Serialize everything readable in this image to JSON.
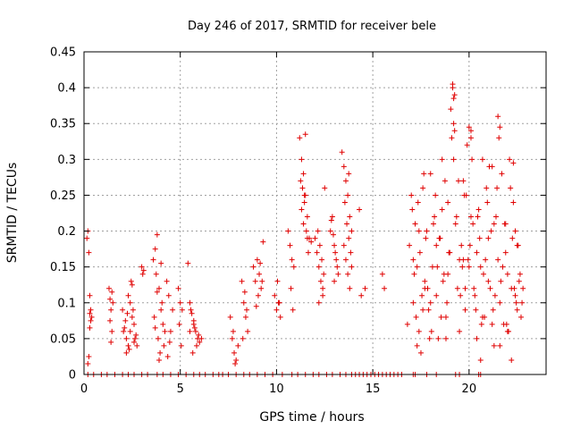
{
  "chart_data": {
    "type": "scatter",
    "title": "Day 246 of 2017, SRMTID for receiver bele",
    "xlabel": "GPS time / hours",
    "ylabel": "SRMTID / TECUs",
    "xlim": [
      0,
      24
    ],
    "ylim": [
      0,
      0.45
    ],
    "xticks": [
      0,
      5,
      10,
      15,
      20
    ],
    "xtick_labels": [
      "0",
      "5",
      "10",
      "15",
      "20"
    ],
    "yticks": [
      0,
      0.05,
      0.1,
      0.15,
      0.2,
      0.25,
      0.3,
      0.35,
      0.4,
      0.45
    ],
    "ytick_labels": [
      "0",
      "0.05",
      "0.1",
      "0.15",
      "0.2",
      "0.25",
      "0.3",
      "0.35",
      "0.4",
      "0.45"
    ],
    "grid": true,
    "marker": "+",
    "color": "#e00000",
    "series": [
      {
        "name": "SRMTID",
        "x": [
          0.15,
          0.2,
          0.25,
          0.3,
          0.35,
          0.3,
          0.25,
          0.2,
          0.3,
          0.35,
          0.4,
          1.3,
          1.35,
          1.4,
          1.45,
          1.5,
          1.4,
          1.35,
          1.45,
          2.0,
          2.1,
          2.2,
          2.3,
          2.4,
          2.5,
          2.6,
          2.7,
          2.4,
          2.3,
          2.5,
          2.2,
          2.6,
          2.15,
          2.35,
          2.55,
          2.45,
          2.25,
          2.65,
          2.05,
          2.75,
          3.0,
          3.05,
          3.1,
          3.6,
          3.7,
          3.8,
          3.9,
          4.0,
          4.1,
          4.2,
          3.75,
          3.85,
          3.95,
          4.05,
          3.65,
          3.8,
          4.15,
          3.9,
          3.7,
          4.0,
          4.3,
          4.4,
          4.5,
          4.6,
          4.35,
          4.45,
          4.9,
          5.0,
          5.1,
          5.05,
          4.95,
          5.4,
          5.5,
          5.6,
          5.7,
          5.8,
          5.9,
          6.0,
          6.1,
          5.55,
          5.65,
          5.75,
          5.85,
          5.95,
          5.5,
          5.7,
          7.6,
          7.7,
          7.8,
          7.9,
          8.0,
          7.75,
          7.85,
          8.2,
          8.3,
          8.4,
          8.5,
          8.35,
          8.45,
          8.25,
          8.8,
          8.9,
          9.0,
          9.1,
          9.2,
          9.3,
          9.05,
          9.15,
          8.95,
          9.25,
          9.9,
          10.0,
          10.1,
          10.2,
          10.05,
          10.15,
          10.6,
          10.7,
          10.8,
          10.9,
          10.75,
          10.85,
          11.2,
          11.3,
          11.4,
          11.5,
          11.6,
          11.7,
          11.8,
          11.35,
          11.45,
          11.55,
          11.65,
          11.25,
          11.5,
          11.4,
          11.6,
          11.3,
          11.45,
          12.0,
          12.1,
          12.2,
          12.3,
          12.4,
          12.5,
          12.15,
          12.25,
          12.35,
          12.45,
          12.2,
          12.4,
          12.8,
          12.9,
          13.0,
          13.1,
          13.2,
          12.95,
          13.05,
          13.15,
          12.85,
          13.0,
          13.4,
          13.5,
          13.6,
          13.7,
          13.8,
          13.9,
          13.55,
          13.65,
          13.75,
          13.85,
          13.6,
          13.7,
          13.8,
          13.5,
          13.9,
          13.75,
          14.3,
          14.4,
          14.6,
          15.5,
          15.6,
          16.8,
          16.9,
          17.0,
          17.1,
          17.2,
          17.3,
          17.4,
          17.5,
          17.6,
          17.7,
          17.8,
          17.9,
          18.0,
          18.1,
          18.2,
          18.3,
          18.4,
          18.5,
          18.6,
          18.7,
          18.8,
          18.9,
          19.0,
          19.1,
          19.2,
          19.3,
          19.4,
          19.5,
          19.6,
          19.7,
          19.8,
          19.9,
          20.0,
          20.1,
          20.2,
          20.3,
          20.4,
          20.5,
          20.6,
          20.7,
          20.8,
          20.9,
          21.0,
          21.1,
          21.2,
          21.3,
          21.4,
          21.5,
          21.6,
          21.7,
          21.8,
          21.9,
          22.0,
          22.1,
          22.2,
          22.3,
          22.4,
          22.5,
          22.6,
          22.7,
          22.8,
          17.05,
          17.25,
          17.45,
          17.65,
          17.85,
          18.05,
          18.25,
          18.45,
          18.65,
          18.85,
          19.05,
          19.15,
          19.25,
          19.45,
          19.65,
          19.85,
          20.05,
          20.25,
          20.45,
          20.65,
          20.85,
          21.05,
          21.25,
          21.45,
          21.65,
          21.85,
          22.05,
          22.25,
          22.45,
          22.65,
          17.15,
          17.35,
          17.55,
          17.75,
          17.95,
          18.15,
          18.35,
          18.55,
          18.75,
          18.95,
          19.35,
          19.55,
          19.75,
          19.95,
          20.15,
          20.35,
          20.55,
          20.75,
          20.95,
          21.15,
          21.35,
          21.55,
          21.75,
          21.95,
          22.15,
          22.35,
          22.55,
          22.75,
          17.1,
          17.4,
          17.7,
          18.0,
          18.3,
          18.6,
          18.9,
          19.2,
          19.5,
          19.8,
          20.1,
          20.4,
          20.7,
          21.0,
          21.3,
          21.6,
          21.9,
          22.2,
          22.5,
          19.15,
          19.2,
          19.25,
          20.0,
          20.1,
          21.5,
          21.6,
          22.3,
          22.4,
          17.3,
          17.6,
          18.8,
          19.7,
          20.6,
          21.2,
          22.0
        ],
        "y": [
          0.19,
          0.2,
          0.17,
          0.085,
          0.075,
          0.11,
          0.025,
          0.015,
          0.065,
          0.09,
          0.08,
          0.12,
          0.105,
          0.09,
          0.06,
          0.1,
          0.045,
          0.075,
          0.115,
          0.09,
          0.065,
          0.05,
          0.04,
          0.06,
          0.08,
          0.07,
          0.055,
          0.1,
          0.11,
          0.125,
          0.03,
          0.045,
          0.075,
          0.035,
          0.09,
          0.13,
          0.085,
          0.05,
          0.06,
          0.04,
          0.15,
          0.14,
          0.145,
          0.16,
          0.175,
          0.195,
          0.12,
          0.09,
          0.07,
          0.06,
          0.14,
          0.05,
          0.03,
          0.1,
          0.08,
          0.115,
          0.04,
          0.02,
          0.065,
          0.155,
          0.13,
          0.11,
          0.06,
          0.09,
          0.025,
          0.045,
          0.12,
          0.1,
          0.09,
          0.04,
          0.07,
          0.155,
          0.1,
          0.085,
          0.07,
          0.06,
          0.05,
          0.045,
          0.05,
          0.09,
          0.03,
          0.065,
          0.04,
          0.055,
          0.06,
          0.075,
          0.08,
          0.05,
          0.03,
          0.02,
          0.04,
          0.06,
          0.015,
          0.13,
          0.1,
          0.08,
          0.06,
          0.115,
          0.09,
          0.05,
          0.15,
          0.13,
          0.16,
          0.14,
          0.12,
          0.185,
          0.11,
          0.155,
          0.095,
          0.13,
          0.11,
          0.09,
          0.1,
          0.08,
          0.13,
          0.1,
          0.2,
          0.18,
          0.16,
          0.15,
          0.12,
          0.09,
          0.33,
          0.3,
          0.28,
          0.25,
          0.22,
          0.19,
          0.185,
          0.26,
          0.24,
          0.2,
          0.17,
          0.27,
          0.335,
          0.21,
          0.19,
          0.23,
          0.25,
          0.19,
          0.17,
          0.15,
          0.13,
          0.12,
          0.26,
          0.2,
          0.18,
          0.16,
          0.14,
          0.1,
          0.11,
          0.2,
          0.22,
          0.18,
          0.16,
          0.14,
          0.195,
          0.17,
          0.15,
          0.215,
          0.13,
          0.31,
          0.29,
          0.27,
          0.25,
          0.22,
          0.2,
          0.24,
          0.21,
          0.19,
          0.17,
          0.16,
          0.14,
          0.12,
          0.18,
          0.15,
          0.28,
          0.23,
          0.11,
          0.12,
          0.14,
          0.12,
          0.07,
          0.18,
          0.25,
          0.1,
          0.21,
          0.15,
          0.06,
          0.03,
          0.26,
          0.12,
          0.2,
          0.09,
          0.28,
          0.15,
          0.22,
          0.11,
          0.05,
          0.19,
          0.3,
          0.14,
          0.08,
          0.24,
          0.17,
          0.33,
          0.35,
          0.21,
          0.12,
          0.06,
          0.18,
          0.27,
          0.09,
          0.32,
          0.15,
          0.34,
          0.21,
          0.11,
          0.05,
          0.23,
          0.15,
          0.3,
          0.08,
          0.26,
          0.19,
          0.12,
          0.29,
          0.04,
          0.22,
          0.16,
          0.1,
          0.28,
          0.07,
          0.21,
          0.14,
          0.3,
          0.02,
          0.24,
          0.11,
          0.18,
          0.13,
          0.08,
          0.12,
          0.23,
          0.08,
          0.17,
          0.28,
          0.12,
          0.06,
          0.25,
          0.19,
          0.13,
          0.1,
          0.37,
          0.4,
          0.34,
          0.27,
          0.15,
          0.25,
          0.18,
          0.12,
          0.22,
          0.07,
          0.16,
          0.29,
          0.09,
          0.26,
          0.13,
          0.21,
          0.06,
          0.19,
          0.1,
          0.14,
          0.14,
          0.24,
          0.11,
          0.19,
          0.05,
          0.21,
          0.15,
          0.08,
          0.27,
          0.17,
          0.22,
          0.11,
          0.25,
          0.16,
          0.3,
          0.09,
          0.19,
          0.14,
          0.24,
          0.2,
          0.11,
          0.33,
          0.15,
          0.07,
          0.26,
          0.12,
          0.18,
          0.1,
          0.16,
          0.2,
          0.13,
          0.1,
          0.18,
          0.23,
          0.14,
          0.3,
          0.16,
          0.12,
          0.22,
          0.17,
          0.08,
          0.13,
          0.21,
          0.04,
          0.17,
          0.12,
          0.09,
          0.405,
          0.385,
          0.39,
          0.345,
          0.33,
          0.36,
          0.345,
          0.295,
          0.2,
          0.04,
          0.09,
          0.05,
          0.16,
          0.02,
          0.07,
          0.06
        ],
        "zeros": [
          0.2,
          0.5,
          0.9,
          1.2,
          1.6,
          2.0,
          2.3,
          2.6,
          3.0,
          3.3,
          3.8,
          4.1,
          4.5,
          4.9,
          5.3,
          5.7,
          6.0,
          6.3,
          6.7,
          7.0,
          7.2,
          7.5,
          7.9,
          8.3,
          8.6,
          9.0,
          9.4,
          9.8,
          10.3,
          10.8,
          11.1,
          11.5,
          11.9,
          12.2,
          12.6,
          12.9,
          13.3,
          13.6,
          13.9,
          14.1,
          14.3,
          14.5,
          14.7,
          14.9,
          15.1,
          15.3,
          15.5,
          15.7,
          15.9,
          16.1,
          16.3,
          16.5,
          17.1,
          17.2,
          17.8,
          18.3,
          19.3,
          19.5,
          20.5,
          20.6
        ]
      }
    ]
  }
}
